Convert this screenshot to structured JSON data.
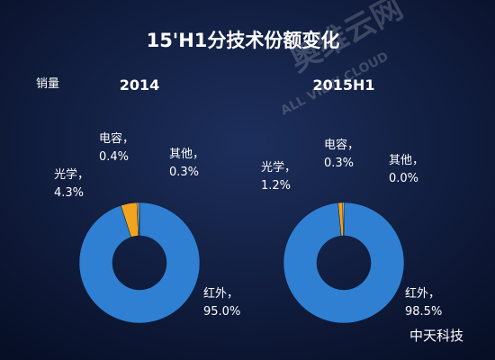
{
  "title": "15'H1分技术份额变化",
  "subtitle": "销量",
  "watermarks": [
    "奥维云网",
    "ALL VIEW CLOUD",
    "中天科技"
  ],
  "chart_data": [
    {
      "type": "pie",
      "title": "2014",
      "categories": [
        "红外，",
        "光学，",
        "电容，",
        "其他，"
      ],
      "values": [
        95.0,
        4.3,
        0.4,
        0.3
      ],
      "value_labels": [
        "95.0%",
        "4.3%",
        "0.4%",
        "0.3%"
      ],
      "colors": [
        "#2f80d2",
        "#f2a51c",
        "#f6e7a6",
        "#9aa3ad"
      ]
    },
    {
      "type": "pie",
      "title": "2015H1",
      "categories": [
        "红外，",
        "光学，",
        "电容，",
        "其他，"
      ],
      "values": [
        98.5,
        1.2,
        0.3,
        0.0
      ],
      "value_labels": [
        "98.5%",
        "1.2%",
        "0.3%",
        "0.0%"
      ],
      "colors": [
        "#2f80d2",
        "#f2a51c",
        "#f6e7a6",
        "#9aa3ad"
      ]
    }
  ]
}
